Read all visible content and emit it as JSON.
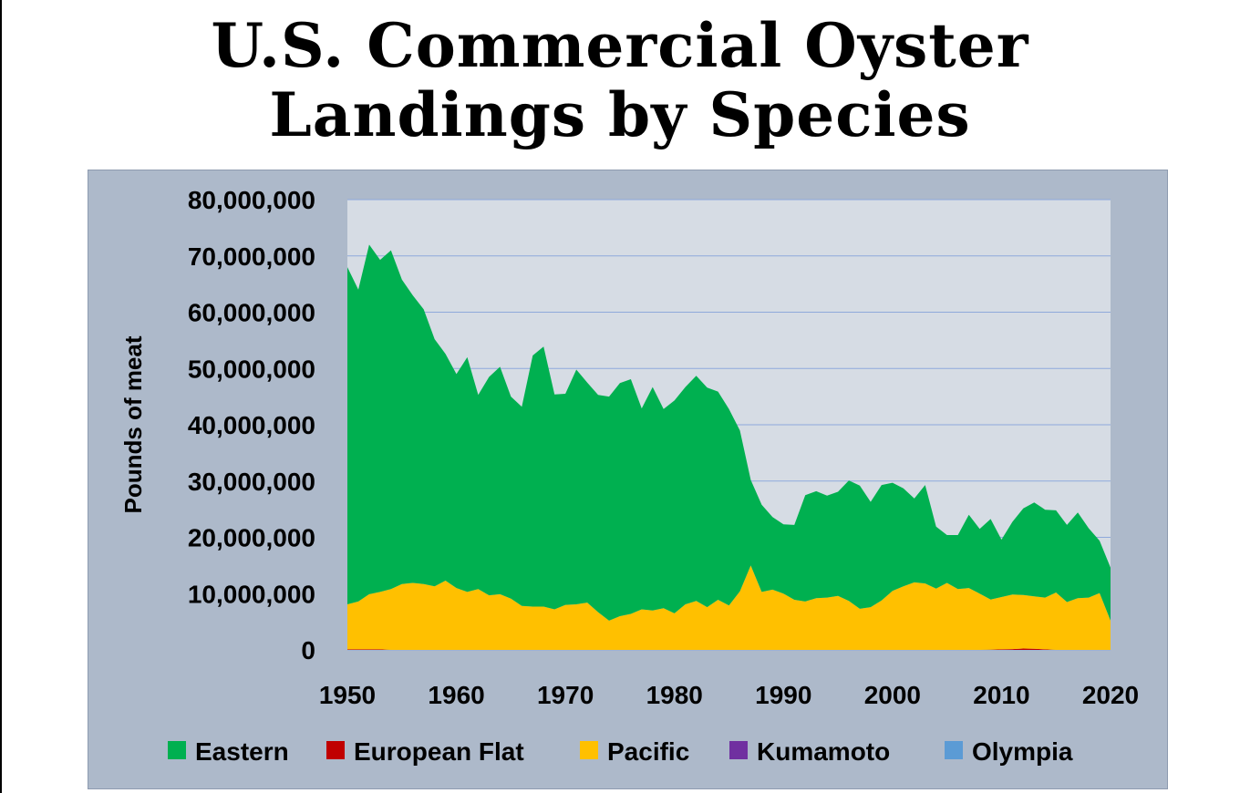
{
  "title": {
    "line1": "U.S. Commercial Oyster",
    "line2": "Landings by Species"
  },
  "colors": {
    "panel_bg": "#adb9ca",
    "plot_bg": "#d6dce4",
    "grid": "#8ea9db",
    "Eastern": "#00b050",
    "European Flat": "#c00000",
    "Pacific": "#ffc000",
    "Kumamoto": "#7030a0",
    "Olympia": "#5b9bd5"
  },
  "chart_data": {
    "type": "area",
    "stacked": true,
    "title": "U.S. Commercial Oyster Landings by Species",
    "xlabel": "",
    "ylabel": "Pounds of meat",
    "xlim": [
      1950,
      2020
    ],
    "ylim": [
      0,
      80000000
    ],
    "x_ticks": [
      "1950",
      "1960",
      "1970",
      "1980",
      "1990",
      "2000",
      "2010",
      "2020"
    ],
    "y_ticks": [
      "0",
      "10,000,000",
      "20,000,000",
      "30,000,000",
      "40,000,000",
      "50,000,000",
      "60,000,000",
      "70,000,000",
      "80,000,000"
    ],
    "grid": true,
    "legend": "bottom",
    "x": [
      1950,
      1951,
      1952,
      1953,
      1954,
      1955,
      1956,
      1957,
      1958,
      1959,
      1960,
      1961,
      1962,
      1963,
      1964,
      1965,
      1966,
      1967,
      1968,
      1969,
      1970,
      1971,
      1972,
      1973,
      1974,
      1975,
      1976,
      1977,
      1978,
      1979,
      1980,
      1981,
      1982,
      1983,
      1984,
      1985,
      1986,
      1987,
      1988,
      1989,
      1990,
      1991,
      1992,
      1993,
      1994,
      1995,
      1996,
      1997,
      1998,
      1999,
      2000,
      2001,
      2002,
      2003,
      2004,
      2005,
      2006,
      2007,
      2008,
      2009,
      2010,
      2011,
      2012,
      2013,
      2014,
      2015,
      2016,
      2017,
      2018,
      2019,
      2020
    ],
    "series": [
      {
        "name": "Olympia",
        "values": [
          0,
          0,
          0,
          0,
          0,
          0,
          0,
          0,
          0,
          0,
          0,
          0,
          0,
          0,
          0,
          0,
          0,
          0,
          0,
          0,
          0,
          0,
          0,
          0,
          0,
          0,
          0,
          0,
          0,
          0,
          0,
          0,
          0,
          0,
          0,
          0,
          0,
          0,
          0,
          0,
          0,
          0,
          0,
          0,
          0,
          0,
          0,
          0,
          0,
          0,
          0,
          0,
          0,
          0,
          0,
          0,
          0,
          0,
          0,
          0,
          0,
          0,
          0,
          0,
          0,
          0,
          0,
          0,
          0,
          0,
          0
        ]
      },
      {
        "name": "Kumamoto",
        "values": [
          0,
          0,
          0,
          0,
          0,
          0,
          0,
          0,
          0,
          0,
          0,
          0,
          0,
          0,
          0,
          0,
          0,
          0,
          0,
          0,
          0,
          0,
          0,
          0,
          0,
          0,
          0,
          0,
          0,
          0,
          0,
          0,
          0,
          0,
          0,
          0,
          0,
          0,
          0,
          0,
          0,
          0,
          0,
          0,
          0,
          0,
          0,
          0,
          0,
          0,
          0,
          0,
          0,
          0,
          0,
          0,
          0,
          0,
          0,
          0,
          0,
          0,
          0,
          0,
          0,
          0,
          0,
          0,
          0,
          0,
          0
        ]
      },
      {
        "name": "European Flat",
        "values": [
          100000,
          100000,
          100000,
          100000,
          0,
          0,
          0,
          0,
          0,
          0,
          0,
          0,
          0,
          0,
          0,
          0,
          0,
          0,
          0,
          0,
          0,
          0,
          0,
          0,
          0,
          0,
          0,
          0,
          0,
          0,
          0,
          0,
          0,
          0,
          0,
          0,
          0,
          0,
          0,
          0,
          0,
          0,
          0,
          0,
          0,
          0,
          0,
          0,
          0,
          0,
          0,
          0,
          0,
          0,
          0,
          0,
          0,
          0,
          0,
          50000,
          100000,
          150000,
          250000,
          200000,
          100000,
          0,
          0,
          0,
          0,
          0,
          0
        ]
      },
      {
        "name": "Pacific",
        "values": [
          8000000,
          8500000,
          9800000,
          10200000,
          10800000,
          11700000,
          11900000,
          11700000,
          11300000,
          12300000,
          11000000,
          10300000,
          10800000,
          9700000,
          9900000,
          9100000,
          7800000,
          7700000,
          7700000,
          7200000,
          8000000,
          8100000,
          8400000,
          6700000,
          5200000,
          6000000,
          6400000,
          7200000,
          7000000,
          7400000,
          6500000,
          8100000,
          8700000,
          7600000,
          8900000,
          7900000,
          10400000,
          15000000,
          10300000,
          10700000,
          10000000,
          8900000,
          8600000,
          9200000,
          9300000,
          9600000,
          8700000,
          7300000,
          7600000,
          8800000,
          10500000,
          11300000,
          12000000,
          11800000,
          10900000,
          11900000,
          10800000,
          11000000,
          10000000,
          8900000,
          9300000,
          9700000,
          9500000,
          9300000,
          9200000,
          10200000,
          8500000,
          9200000,
          9300000,
          10100000,
          5200000
        ]
      },
      {
        "name": "Eastern",
        "values": [
          59900000,
          55400000,
          62100000,
          59000000,
          60200000,
          54100000,
          51100000,
          48800000,
          43900000,
          40300000,
          38000000,
          41700000,
          34500000,
          38800000,
          40400000,
          35900000,
          35400000,
          44600000,
          46200000,
          38200000,
          37500000,
          41700000,
          39100000,
          38600000,
          39800000,
          41400000,
          41700000,
          35700000,
          39700000,
          35400000,
          37800000,
          38600000,
          40000000,
          39000000,
          37000000,
          34900000,
          28600000,
          15200000,
          15500000,
          12900000,
          12300000,
          13300000,
          18900000,
          19000000,
          18100000,
          18500000,
          21400000,
          21900000,
          18700000,
          20500000,
          19200000,
          17400000,
          14900000,
          17500000,
          11000000,
          8500000,
          9600000,
          13000000,
          11500000,
          14300000,
          10200000,
          12900000,
          15400000,
          16700000,
          15600000,
          14600000,
          13700000,
          15200000,
          12300000,
          9300000,
          9400000
        ]
      }
    ],
    "legend_entries": [
      "Eastern",
      "European Flat",
      "Pacific",
      "Kumamoto",
      "Olympia"
    ]
  }
}
